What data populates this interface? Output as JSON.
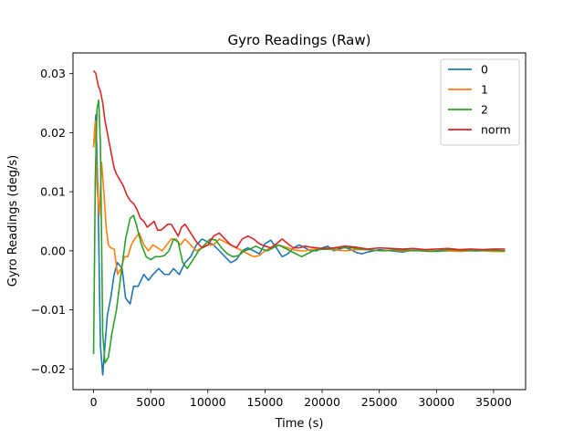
{
  "chart_data": {
    "type": "line",
    "title": "Gyro Readings (Raw)",
    "xlabel": "Time (s)",
    "ylabel": "Gyro Readings (deg/s)",
    "xlim": [
      -1800,
      37800
    ],
    "ylim": [
      -0.0235,
      0.0335
    ],
    "xticks": [
      0,
      5000,
      10000,
      15000,
      20000,
      25000,
      30000,
      35000
    ],
    "xtick_labels": [
      "0",
      "5000",
      "10000",
      "15000",
      "20000",
      "25000",
      "30000",
      "35000"
    ],
    "yticks": [
      -0.02,
      -0.01,
      0.0,
      0.01,
      0.02,
      0.03
    ],
    "ytick_labels": [
      "−0.02",
      "−0.01",
      "0.00",
      "0.01",
      "0.02",
      "0.03"
    ],
    "grid": false,
    "legend_position": "top-right",
    "series": [
      {
        "name": "0",
        "color": "#1f77b4",
        "x": [
          0,
          200,
          400,
          600,
          800,
          1000,
          1200,
          1500,
          1800,
          2100,
          2500,
          2800,
          3200,
          3500,
          3900,
          4400,
          4800,
          5200,
          5700,
          6200,
          6600,
          7000,
          7500,
          8000,
          8500,
          9000,
          9500,
          10000,
          10500,
          11000,
          11500,
          12000,
          12500,
          13000,
          13500,
          14000,
          14500,
          15000,
          15500,
          16000,
          16500,
          17000,
          17500,
          18000,
          18500,
          19000,
          19500,
          20000,
          20500,
          21000,
          21500,
          22000,
          22500,
          23000,
          23500,
          24000,
          24500,
          25000,
          26000,
          27000,
          28000,
          29000,
          30000,
          31000,
          32000,
          33000,
          34000,
          35000,
          36000
        ],
        "y": [
          0.0175,
          0.023,
          0.008,
          -0.016,
          -0.021,
          -0.016,
          -0.011,
          -0.008,
          -0.004,
          -0.002,
          -0.003,
          -0.008,
          -0.009,
          -0.006,
          -0.006,
          -0.004,
          -0.005,
          -0.004,
          -0.003,
          -0.004,
          -0.004,
          -0.003,
          -0.004,
          -0.002,
          -0.001,
          0.001,
          0.002,
          0.0015,
          0.001,
          0.0,
          -0.001,
          -0.002,
          -0.0015,
          0.0,
          0.0005,
          0.0,
          -0.0005,
          0.0012,
          0.0018,
          0.0005,
          -0.001,
          -0.0005,
          0.0005,
          0.001,
          0.0005,
          0.0,
          0.0,
          0.0005,
          0.0008,
          0.0,
          0.0003,
          0.0006,
          0.0002,
          -0.0003,
          -0.0005,
          -0.0002,
          0.0,
          0.0002,
          0.0,
          -0.0002,
          0.0001,
          0.0,
          -0.0001,
          0.0,
          0.0001,
          0.0,
          0.0,
          0.0001,
          0.0
        ]
      },
      {
        "name": "1",
        "color": "#ff7f0e",
        "x": [
          0,
          150,
          300,
          500,
          700,
          900,
          1100,
          1300,
          1500,
          1800,
          2100,
          2400,
          2700,
          3000,
          3300,
          3600,
          4000,
          4400,
          4800,
          5200,
          5600,
          6000,
          6400,
          6800,
          7200,
          7600,
          8000,
          8500,
          9000,
          9500,
          10000,
          10500,
          11000,
          11500,
          12000,
          12500,
          13000,
          13500,
          14000,
          14500,
          15000,
          15500,
          16000,
          16500,
          17000,
          17500,
          18000,
          18500,
          19000,
          20000,
          21000,
          22000,
          23000,
          24000,
          25000,
          26000,
          27000,
          28000,
          29000,
          30000,
          31000,
          32000,
          33000,
          34000,
          35000,
          36000
        ],
        "y": [
          0.0175,
          0.022,
          0.011,
          0.006,
          0.015,
          0.01,
          0.004,
          0.001,
          0.0005,
          0.0003,
          -0.004,
          -0.003,
          -0.001,
          -0.001,
          0.001,
          0.002,
          0.003,
          0.001,
          0.0,
          0.001,
          0.0005,
          0.0,
          0.001,
          0.002,
          0.002,
          0.001,
          0.002,
          0.001,
          0.0,
          0.0005,
          0.001,
          0.001,
          0.002,
          0.0015,
          0.001,
          0.0005,
          0.0,
          -0.0005,
          -0.001,
          -0.0008,
          0.0,
          0.0005,
          0.001,
          0.0008,
          0.0005,
          0.0002,
          0.0,
          0.0,
          0.0002,
          0.0003,
          0.0002,
          0.0,
          0.0002,
          0.0002,
          0.0,
          0.0001,
          0.0,
          0.0,
          0.0001,
          0.0,
          0.0,
          -0.0001,
          0.0,
          0.0,
          -0.0001,
          -0.0001
        ]
      },
      {
        "name": "2",
        "color": "#2ca02c",
        "x": [
          0,
          150,
          300,
          450,
          600,
          800,
          1000,
          1300,
          1600,
          2000,
          2400,
          2800,
          3200,
          3500,
          3800,
          4200,
          4600,
          5000,
          5400,
          5800,
          6200,
          6600,
          7000,
          7400,
          7800,
          8200,
          8700,
          9200,
          9700,
          10200,
          10700,
          11200,
          11700,
          12200,
          12700,
          13200,
          13700,
          14200,
          14700,
          15200,
          15700,
          16200,
          16700,
          17200,
          17700,
          18200,
          18700,
          19200,
          19700,
          20500,
          21500,
          22500,
          23500,
          24500,
          25500,
          26500,
          27500,
          28500,
          29500,
          30500,
          31500,
          32500,
          33500,
          34500,
          36000
        ],
        "y": [
          -0.0175,
          0.012,
          0.024,
          0.0255,
          0.018,
          -0.014,
          -0.019,
          -0.018,
          -0.014,
          -0.01,
          -0.004,
          0.002,
          0.0055,
          0.006,
          0.004,
          0.001,
          -0.001,
          -0.0015,
          -0.001,
          -0.001,
          -0.0008,
          0.0,
          0.002,
          0.0015,
          -0.002,
          -0.003,
          -0.0015,
          0.0,
          0.001,
          0.002,
          0.0018,
          0.0005,
          -0.0005,
          -0.001,
          -0.0008,
          0.0,
          0.0003,
          0.0008,
          0.0003,
          0.0,
          0.0005,
          0.001,
          0.0005,
          0.0,
          -0.0005,
          -0.001,
          -0.0005,
          0.0,
          0.0002,
          0.0003,
          0.0005,
          0.0005,
          0.0003,
          0.0001,
          0.0,
          0.0002,
          0.0001,
          0.0,
          -0.0001,
          0.0001,
          0.0002,
          0.0001,
          0.0,
          0.0001,
          0.0
        ]
      },
      {
        "name": "norm",
        "color": "#d62728",
        "x": [
          0,
          200,
          400,
          600,
          800,
          1000,
          1200,
          1400,
          1600,
          1800,
          2000,
          2300,
          2600,
          2900,
          3200,
          3500,
          3800,
          4100,
          4400,
          4700,
          5000,
          5300,
          5600,
          5900,
          6200,
          6500,
          6800,
          7100,
          7400,
          7700,
          8000,
          8500,
          9000,
          9500,
          10000,
          10500,
          11000,
          11500,
          12000,
          12500,
          13000,
          13500,
          14000,
          14500,
          15000,
          15500,
          16000,
          16500,
          17000,
          17500,
          18000,
          18500,
          19000,
          20000,
          21000,
          22000,
          23000,
          24000,
          25000,
          26000,
          27000,
          28000,
          29000,
          30000,
          31000,
          32000,
          33000,
          34000,
          35000,
          36000
        ],
        "y": [
          0.0305,
          0.03,
          0.028,
          0.027,
          0.025,
          0.022,
          0.02,
          0.018,
          0.016,
          0.014,
          0.013,
          0.012,
          0.011,
          0.0095,
          0.0085,
          0.008,
          0.007,
          0.0055,
          0.005,
          0.004,
          0.0045,
          0.005,
          0.0035,
          0.0035,
          0.004,
          0.0045,
          0.0045,
          0.0035,
          0.0025,
          0.004,
          0.0045,
          0.003,
          0.0015,
          0.0005,
          0.001,
          0.0025,
          0.003,
          0.002,
          0.001,
          0.0005,
          0.002,
          0.0025,
          0.002,
          0.0012,
          0.0008,
          0.0005,
          0.0012,
          0.002,
          0.0012,
          0.0005,
          0.0005,
          0.0008,
          0.0006,
          0.0004,
          0.0005,
          0.0008,
          0.0006,
          0.0003,
          0.0005,
          0.0004,
          0.0003,
          0.0004,
          0.0002,
          0.0003,
          0.0004,
          0.0002,
          0.0003,
          0.0002,
          0.0003,
          0.0003
        ]
      }
    ]
  }
}
